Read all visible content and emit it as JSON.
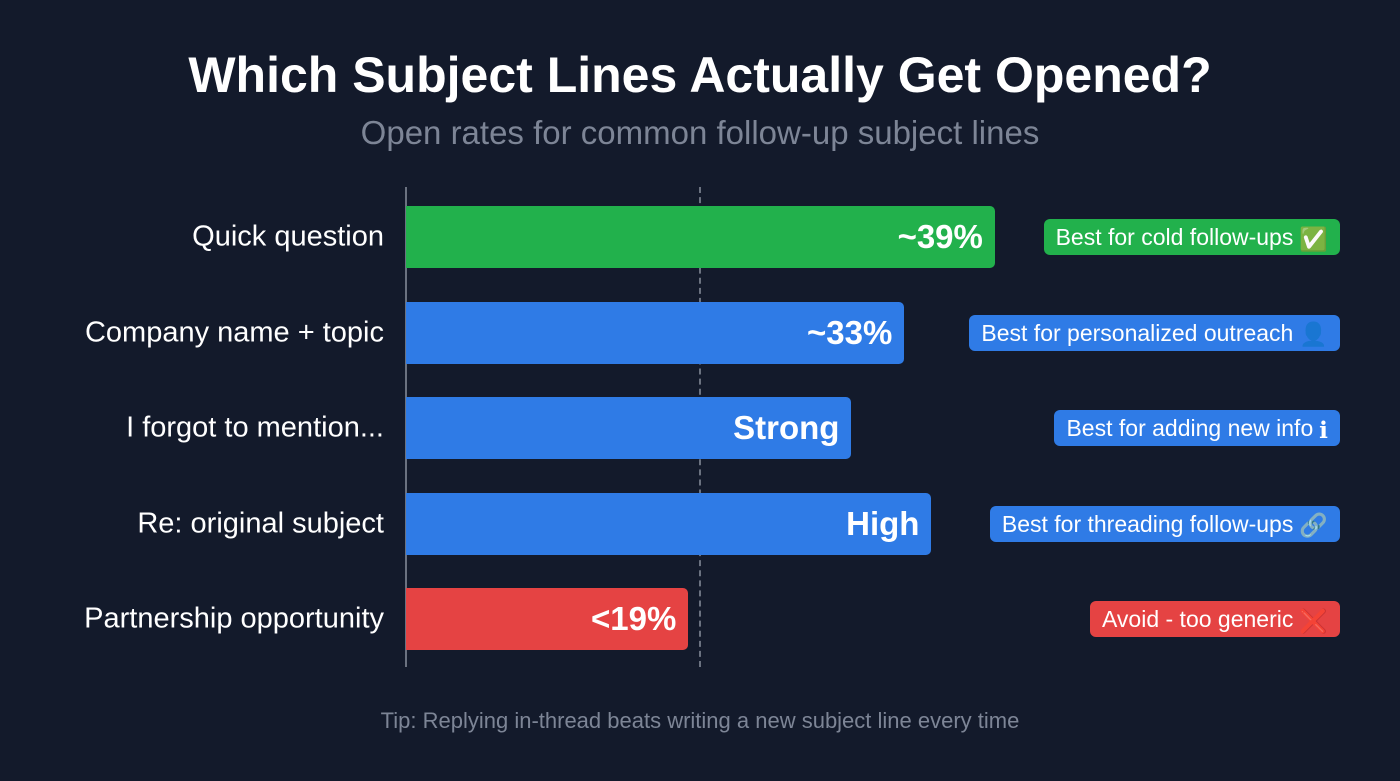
{
  "title": "Which Subject Lines Actually Get Opened?",
  "subtitle": "Open rates for common follow-up subject lines",
  "tip": "Tip: Replying in-thread beats writing a new subject line every time",
  "chart_data": {
    "type": "bar",
    "orientation": "horizontal",
    "title": "Which Subject Lines Actually Get Opened?",
    "subtitle": "Open rates for common follow-up subject lines",
    "xlabel": "",
    "ylabel": "",
    "xlim": [
      0,
      50
    ],
    "grid": false,
    "reference_line_x": 19,
    "categories": [
      "Quick question",
      "Company name + topic",
      "I forgot to mention...",
      "Re: original subject",
      "Partnership opportunity"
    ],
    "values": [
      39,
      33,
      29.5,
      34.8,
      18.7
    ],
    "data_labels": [
      "~39%",
      "~33%",
      "Strong",
      "High",
      "<19%"
    ],
    "colors": [
      "#22b14c",
      "#2f7be6",
      "#2f7be6",
      "#2f7be6",
      "#e54343"
    ],
    "annotations": [
      {
        "text": "Best for cold follow-ups",
        "icon": "check-box-icon",
        "glyph": "✅",
        "color": "#22b14c"
      },
      {
        "text": "Best for personalized outreach",
        "icon": "user-icon",
        "glyph": "👤",
        "color": "#2f7be6"
      },
      {
        "text": "Best for adding new info",
        "icon": "info-icon",
        "glyph": "ℹ",
        "color": "#2f7be6"
      },
      {
        "text": "Best for threading follow-ups",
        "icon": "link-icon",
        "glyph": "🔗",
        "color": "#2f7be6"
      },
      {
        "text": "Avoid - too generic",
        "icon": "cross-icon",
        "glyph": "❌",
        "color": "#e54343"
      }
    ]
  }
}
